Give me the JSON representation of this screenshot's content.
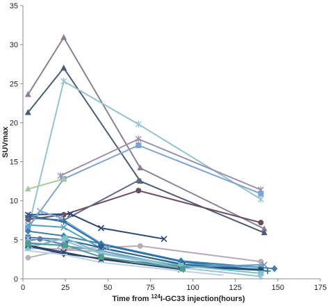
{
  "chart_data": {
    "type": "line",
    "title": "",
    "xlabel_parts": {
      "prefix": "Time from ",
      "sup": "124",
      "suffix": "I-GC33  injection(hours)"
    },
    "ylabel": "SUVmax",
    "xlim": [
      0,
      175
    ],
    "ylim": [
      0,
      35
    ],
    "xticks": [
      0,
      25,
      50,
      75,
      100,
      125,
      150,
      175
    ],
    "yticks": [
      0,
      5,
      10,
      15,
      20,
      25,
      30,
      35
    ],
    "grid": false,
    "legend": "none",
    "series": [
      {
        "color": "#8a7f95",
        "marker": "triangle",
        "points": [
          [
            3,
            23.6
          ],
          [
            24,
            30.9
          ],
          [
            69,
            14.2
          ],
          [
            142,
            6.4
          ]
        ]
      },
      {
        "color": "#4a5a78",
        "marker": "triangle",
        "points": [
          [
            3,
            21.3
          ],
          [
            24,
            27.0
          ],
          [
            69,
            12.5
          ],
          [
            142,
            5.9
          ]
        ]
      },
      {
        "color": "#92c4cf",
        "marker": "star",
        "points": [
          [
            3,
            6.4
          ],
          [
            24,
            25.3
          ],
          [
            68,
            19.8
          ],
          [
            140,
            10.2
          ]
        ]
      },
      {
        "color": "#9a8faa",
        "marker": "star",
        "points": [
          [
            22,
            13.2
          ],
          [
            68,
            17.9
          ],
          [
            140,
            11.4
          ]
        ]
      },
      {
        "color": "#7ea2d8",
        "marker": "square",
        "points": [
          [
            3,
            6.5
          ],
          [
            24,
            12.8
          ],
          [
            68,
            17.1
          ],
          [
            140,
            10.9
          ]
        ]
      },
      {
        "color": "#a8c8a0",
        "marker": "triangle",
        "points": [
          [
            3,
            11.5
          ],
          [
            24,
            12.8
          ]
        ]
      },
      {
        "color": "#6a4d5f",
        "marker": "circle",
        "points": [
          [
            3,
            7.6
          ],
          [
            24,
            8.2
          ],
          [
            68,
            11.3
          ],
          [
            140,
            7.2
          ]
        ]
      },
      {
        "color": "#5f6b86",
        "marker": "triangle",
        "points": [
          [
            3,
            7.8
          ],
          [
            24,
            7.5
          ],
          [
            68,
            12.6
          ]
        ]
      },
      {
        "color": "#2b4778",
        "marker": "x",
        "points": [
          [
            3,
            8.2
          ],
          [
            28,
            8.3
          ],
          [
            46,
            6.5
          ],
          [
            83,
            5.1
          ]
        ]
      },
      {
        "color": "#7aa7d8",
        "marker": "x",
        "points": [
          [
            3,
            6.6
          ],
          [
            10,
            8.7
          ],
          [
            22,
            7.8
          ],
          [
            50,
            4.0
          ]
        ]
      },
      {
        "color": "#b6acba",
        "marker": "circle",
        "points": [
          [
            3,
            3.9
          ],
          [
            25,
            3.8
          ],
          [
            69,
            4.2
          ],
          [
            140,
            2.2
          ]
        ]
      },
      {
        "color": "#b8b0b8",
        "marker": "circle",
        "points": [
          [
            3,
            2.7
          ],
          [
            24,
            3.7
          ],
          [
            46,
            3.5
          ]
        ]
      },
      {
        "color": "#3e7fb0",
        "marker": "diamond",
        "points": [
          [
            3,
            6.1
          ],
          [
            24,
            5.5
          ],
          [
            46,
            4.5
          ],
          [
            93,
            2.3
          ],
          [
            148,
            1.3
          ]
        ]
      },
      {
        "color": "#2e6e9e",
        "marker": "plus",
        "points": [
          [
            3,
            8.1
          ],
          [
            24,
            7.3
          ],
          [
            46,
            4.4
          ],
          [
            93,
            2.2
          ],
          [
            144,
            1.0
          ]
        ]
      },
      {
        "color": "#4fa2c2",
        "marker": "x",
        "points": [
          [
            3,
            6.9
          ],
          [
            24,
            6.6
          ],
          [
            46,
            3.9
          ],
          [
            94,
            1.9
          ],
          [
            140,
            1.5
          ]
        ]
      },
      {
        "color": "#2a5f8e",
        "marker": "square",
        "points": [
          [
            3,
            5.3
          ],
          [
            25,
            5.0
          ],
          [
            46,
            4.0
          ],
          [
            94,
            1.8
          ],
          [
            140,
            1.2
          ]
        ]
      },
      {
        "color": "#6796c8",
        "marker": "x",
        "points": [
          [
            3,
            4.6
          ],
          [
            22,
            4.3
          ],
          [
            46,
            3.6
          ],
          [
            94,
            1.5
          ],
          [
            142,
            1.8
          ]
        ]
      },
      {
        "color": "#5d7ca6",
        "marker": "circle",
        "points": [
          [
            3,
            4.9
          ],
          [
            10,
            5.1
          ],
          [
            24,
            4.4
          ]
        ]
      },
      {
        "color": "#26496e",
        "marker": "diamond",
        "points": [
          [
            3,
            4.2
          ],
          [
            24,
            3.2
          ],
          [
            46,
            2.6
          ],
          [
            93,
            1.6
          ],
          [
            140,
            1.1
          ]
        ]
      },
      {
        "color": "#78c0c8",
        "marker": "square",
        "points": [
          [
            3,
            4.0
          ],
          [
            25,
            5.2
          ],
          [
            46,
            3.3
          ],
          [
            93,
            1.7
          ],
          [
            140,
            0.7
          ]
        ]
      },
      {
        "color": "#2f3f67",
        "marker": "x",
        "points": [
          [
            3,
            4.3
          ],
          [
            24,
            3.4
          ],
          [
            46,
            2.5
          ],
          [
            93,
            1.2
          ]
        ]
      },
      {
        "color": "#bcd2e8",
        "marker": "dash",
        "points": [
          [
            3,
            3.6
          ],
          [
            24,
            3.1
          ],
          [
            46,
            2.1
          ],
          [
            93,
            1.0
          ],
          [
            116,
            0.5
          ]
        ]
      },
      {
        "color": "#9bc0dc",
        "marker": "star",
        "points": [
          [
            3,
            5.2
          ],
          [
            24,
            4.9
          ],
          [
            46,
            3.2
          ],
          [
            94,
            1.4
          ],
          [
            140,
            0.3
          ]
        ]
      },
      {
        "color": "#4c9e90",
        "marker": "square",
        "points": [
          [
            3,
            4.5
          ],
          [
            25,
            4.3
          ],
          [
            46,
            2.8
          ],
          [
            94,
            1.3
          ]
        ]
      }
    ]
  }
}
